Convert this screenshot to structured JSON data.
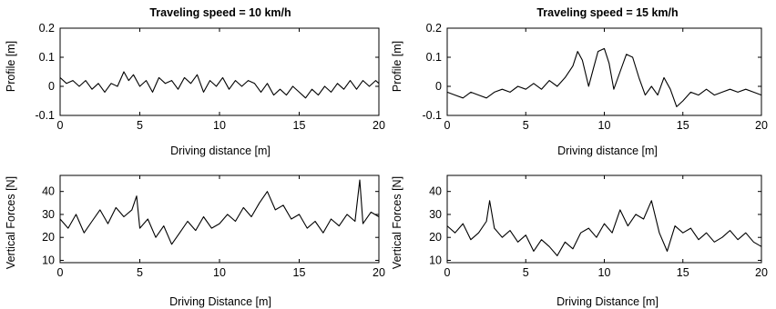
{
  "chart_data": [
    {
      "type": "line",
      "title": "Traveling speed = 10 km/h",
      "xlabel": "Driving distance [m]",
      "ylabel": "Profile [m]",
      "xlim": [
        0,
        20
      ],
      "ylim": [
        -0.1,
        0.2
      ],
      "xticks": [
        0,
        5,
        10,
        15,
        20
      ],
      "yticks": [
        -0.1,
        0,
        0.1,
        0.2
      ],
      "xtick_labels": [
        "0",
        "5",
        "10",
        "15",
        "20"
      ],
      "ytick_labels": [
        "-0.1",
        "0",
        "0.1",
        "0.2"
      ],
      "grid": false,
      "series": [
        {
          "x": [
            0,
            0.4,
            0.8,
            1.2,
            1.6,
            2.0,
            2.4,
            2.8,
            3.2,
            3.6,
            4.0,
            4.3,
            4.6,
            5.0,
            5.4,
            5.8,
            6.2,
            6.6,
            7.0,
            7.4,
            7.8,
            8.2,
            8.6,
            9.0,
            9.4,
            9.8,
            10.2,
            10.6,
            11.0,
            11.4,
            11.8,
            12.2,
            12.6,
            13.0,
            13.4,
            13.8,
            14.2,
            14.6,
            15.0,
            15.4,
            15.8,
            16.2,
            16.6,
            17.0,
            17.4,
            17.8,
            18.2,
            18.6,
            19.0,
            19.4,
            19.8,
            20.0
          ],
          "y": [
            0.03,
            0.01,
            0.02,
            0.0,
            0.02,
            -0.01,
            0.01,
            -0.02,
            0.01,
            0.0,
            0.05,
            0.02,
            0.04,
            0.0,
            0.02,
            -0.02,
            0.03,
            0.01,
            0.02,
            -0.01,
            0.03,
            0.01,
            0.04,
            -0.02,
            0.02,
            0.0,
            0.03,
            -0.01,
            0.02,
            0.0,
            0.02,
            0.01,
            -0.02,
            0.01,
            -0.03,
            -0.01,
            -0.03,
            0.0,
            -0.02,
            -0.04,
            -0.01,
            -0.03,
            0.0,
            -0.02,
            0.01,
            -0.01,
            0.02,
            -0.01,
            0.02,
            0.0,
            0.02,
            0.01
          ]
        }
      ]
    },
    {
      "type": "line",
      "title": "Traveling speed = 15 km/h",
      "xlabel": "Driving distance [m]",
      "ylabel": "Profile [m]",
      "xlim": [
        0,
        20
      ],
      "ylim": [
        -0.1,
        0.2
      ],
      "xticks": [
        0,
        5,
        10,
        15,
        20
      ],
      "yticks": [
        -0.1,
        0,
        0.1,
        0.2
      ],
      "xtick_labels": [
        "0",
        "5",
        "10",
        "15",
        "20"
      ],
      "ytick_labels": [
        "-0.1",
        "0",
        "0.1",
        "0.2"
      ],
      "grid": false,
      "series": [
        {
          "x": [
            0,
            0.5,
            1.0,
            1.5,
            2.0,
            2.5,
            3.0,
            3.5,
            4.0,
            4.5,
            5.0,
            5.5,
            6.0,
            6.5,
            7.0,
            7.5,
            8.0,
            8.3,
            8.6,
            9.0,
            9.3,
            9.6,
            10.0,
            10.3,
            10.6,
            11.0,
            11.4,
            11.8,
            12.2,
            12.6,
            13.0,
            13.4,
            13.8,
            14.2,
            14.6,
            15.0,
            15.5,
            16.0,
            16.5,
            17.0,
            17.5,
            18.0,
            18.5,
            19.0,
            19.5,
            20.0
          ],
          "y": [
            -0.02,
            -0.03,
            -0.04,
            -0.02,
            -0.03,
            -0.04,
            -0.02,
            -0.01,
            -0.02,
            0.0,
            -0.01,
            0.01,
            -0.01,
            0.02,
            0.0,
            0.03,
            0.07,
            0.12,
            0.09,
            0.0,
            0.06,
            0.12,
            0.13,
            0.08,
            -0.01,
            0.05,
            0.11,
            0.1,
            0.03,
            -0.03,
            0.0,
            -0.03,
            0.03,
            -0.01,
            -0.07,
            -0.05,
            -0.02,
            -0.03,
            -0.01,
            -0.03,
            -0.02,
            -0.01,
            -0.02,
            -0.01,
            -0.02,
            -0.03
          ]
        }
      ]
    },
    {
      "type": "line",
      "title": "",
      "xlabel": "Driving Distance [m]",
      "ylabel": "Vertical Forces [N]",
      "xlim": [
        0,
        20
      ],
      "ylim": [
        9,
        47
      ],
      "xticks": [
        0,
        5,
        10,
        15,
        20
      ],
      "yticks": [
        10,
        20,
        30,
        40
      ],
      "xtick_labels": [
        "0",
        "5",
        "10",
        "15",
        "20"
      ],
      "ytick_labels": [
        "10",
        "20",
        "30",
        "40"
      ],
      "grid": false,
      "series": [
        {
          "x": [
            0,
            0.5,
            1.0,
            1.5,
            2.0,
            2.5,
            3.0,
            3.5,
            4.0,
            4.5,
            4.8,
            5.0,
            5.5,
            6.0,
            6.5,
            7.0,
            7.5,
            8.0,
            8.5,
            9.0,
            9.5,
            10.0,
            10.5,
            11.0,
            11.5,
            12.0,
            12.5,
            13.0,
            13.5,
            14.0,
            14.5,
            15.0,
            15.5,
            16.0,
            16.5,
            17.0,
            17.5,
            18.0,
            18.5,
            18.8,
            19.0,
            19.5,
            20.0
          ],
          "y": [
            28,
            24,
            30,
            22,
            27,
            32,
            26,
            33,
            29,
            32,
            38,
            24,
            28,
            20,
            25,
            17,
            22,
            27,
            23,
            29,
            24,
            26,
            30,
            27,
            33,
            29,
            35,
            40,
            32,
            34,
            28,
            30,
            24,
            27,
            22,
            28,
            25,
            30,
            27,
            45,
            26,
            31,
            29
          ]
        }
      ]
    },
    {
      "type": "line",
      "title": "",
      "xlabel": "Driving Distance [m]",
      "ylabel": "Vertical Forces [N]",
      "xlim": [
        0,
        20
      ],
      "ylim": [
        9,
        47
      ],
      "xticks": [
        0,
        5,
        10,
        15,
        20
      ],
      "yticks": [
        10,
        20,
        30,
        40
      ],
      "xtick_labels": [
        "0",
        "5",
        "10",
        "15",
        "20"
      ],
      "ytick_labels": [
        "10",
        "20",
        "30",
        "40"
      ],
      "grid": false,
      "series": [
        {
          "x": [
            0,
            0.5,
            1.0,
            1.5,
            2.0,
            2.5,
            2.7,
            3.0,
            3.5,
            4.0,
            4.5,
            5.0,
            5.5,
            6.0,
            6.5,
            7.0,
            7.5,
            8.0,
            8.5,
            9.0,
            9.5,
            10.0,
            10.5,
            11.0,
            11.5,
            12.0,
            12.5,
            13.0,
            13.5,
            14.0,
            14.5,
            15.0,
            15.5,
            16.0,
            16.5,
            17.0,
            17.5,
            18.0,
            18.5,
            19.0,
            19.5,
            20.0
          ],
          "y": [
            25,
            22,
            26,
            19,
            22,
            27,
            36,
            24,
            20,
            23,
            18,
            21,
            14,
            19,
            16,
            12,
            18,
            15,
            22,
            24,
            20,
            26,
            22,
            32,
            25,
            30,
            28,
            36,
            22,
            14,
            25,
            22,
            24,
            19,
            22,
            18,
            20,
            23,
            19,
            22,
            18,
            16
          ]
        }
      ]
    }
  ]
}
